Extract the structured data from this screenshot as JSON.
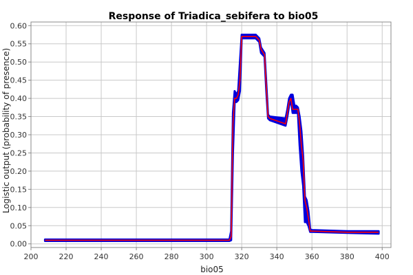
{
  "chart_data": {
    "type": "line",
    "title": "Response of Triadica_sebifera to bio05",
    "xlabel": "bio05",
    "ylabel": "Logistic output (probability of presence)",
    "xlim": [
      200,
      405
    ],
    "ylim": [
      -0.01,
      0.61
    ],
    "xticks": [
      200,
      220,
      240,
      260,
      280,
      300,
      320,
      340,
      360,
      380,
      400
    ],
    "xtick_labels": [
      "200",
      "220",
      "240",
      "260",
      "280",
      "300",
      "320",
      "340",
      "360",
      "380",
      "400"
    ],
    "yticks": [
      0.0,
      0.05,
      0.1,
      0.15,
      0.2,
      0.25,
      0.3,
      0.35,
      0.4,
      0.45,
      0.5,
      0.55,
      0.6
    ],
    "ytick_labels": [
      "0.00",
      "0.05",
      "0.10",
      "0.15",
      "0.20",
      "0.25",
      "0.30",
      "0.35",
      "0.40",
      "0.45",
      "0.50",
      "0.55",
      "0.60"
    ],
    "grid": true,
    "colors": {
      "mean": "#ff0000",
      "band": "#0000dd",
      "grid": "#c8c8c8",
      "axis": "#888888"
    },
    "series": [
      {
        "x": [
          208,
          313,
          314,
          315,
          316,
          317,
          318,
          319,
          320,
          321,
          328,
          330,
          331,
          333,
          334,
          335,
          336,
          345,
          346,
          347,
          348,
          349,
          350,
          351,
          352,
          353,
          354,
          355,
          356,
          357,
          358,
          359,
          360,
          380,
          398
        ],
        "y": [
          0.01,
          0.01,
          0.02,
          0.33,
          0.4,
          0.4,
          0.41,
          0.45,
          0.57,
          0.57,
          0.57,
          0.56,
          0.535,
          0.52,
          0.43,
          0.35,
          0.345,
          0.33,
          0.36,
          0.39,
          0.4,
          0.37,
          0.37,
          0.37,
          0.37,
          0.33,
          0.27,
          0.23,
          0.12,
          0.1,
          0.07,
          0.035,
          0.035,
          0.032,
          0.032
        ]
      }
    ],
    "band": {
      "x": [
        208,
        313,
        314,
        315,
        316,
        317,
        318,
        319,
        320,
        321,
        328,
        330,
        331,
        333,
        334,
        335,
        336,
        345,
        346,
        347,
        348,
        349,
        350,
        351,
        352,
        353,
        354,
        355,
        356,
        357,
        358,
        359,
        360,
        380,
        398
      ],
      "upper": [
        0.012,
        0.012,
        0.035,
        0.36,
        0.42,
        0.41,
        0.42,
        0.5,
        0.575,
        0.575,
        0.575,
        0.565,
        0.54,
        0.525,
        0.44,
        0.355,
        0.35,
        0.345,
        0.37,
        0.4,
        0.41,
        0.41,
        0.38,
        0.38,
        0.375,
        0.35,
        0.31,
        0.24,
        0.13,
        0.12,
        0.09,
        0.04,
        0.038,
        0.035,
        0.035
      ],
      "lower": [
        0.008,
        0.008,
        0.01,
        0.25,
        0.39,
        0.39,
        0.395,
        0.42,
        0.565,
        0.565,
        0.565,
        0.555,
        0.525,
        0.515,
        0.42,
        0.345,
        0.34,
        0.325,
        0.35,
        0.38,
        0.395,
        0.36,
        0.36,
        0.36,
        0.36,
        0.27,
        0.2,
        0.16,
        0.06,
        0.06,
        0.05,
        0.033,
        0.033,
        0.03,
        0.028
      ]
    }
  }
}
